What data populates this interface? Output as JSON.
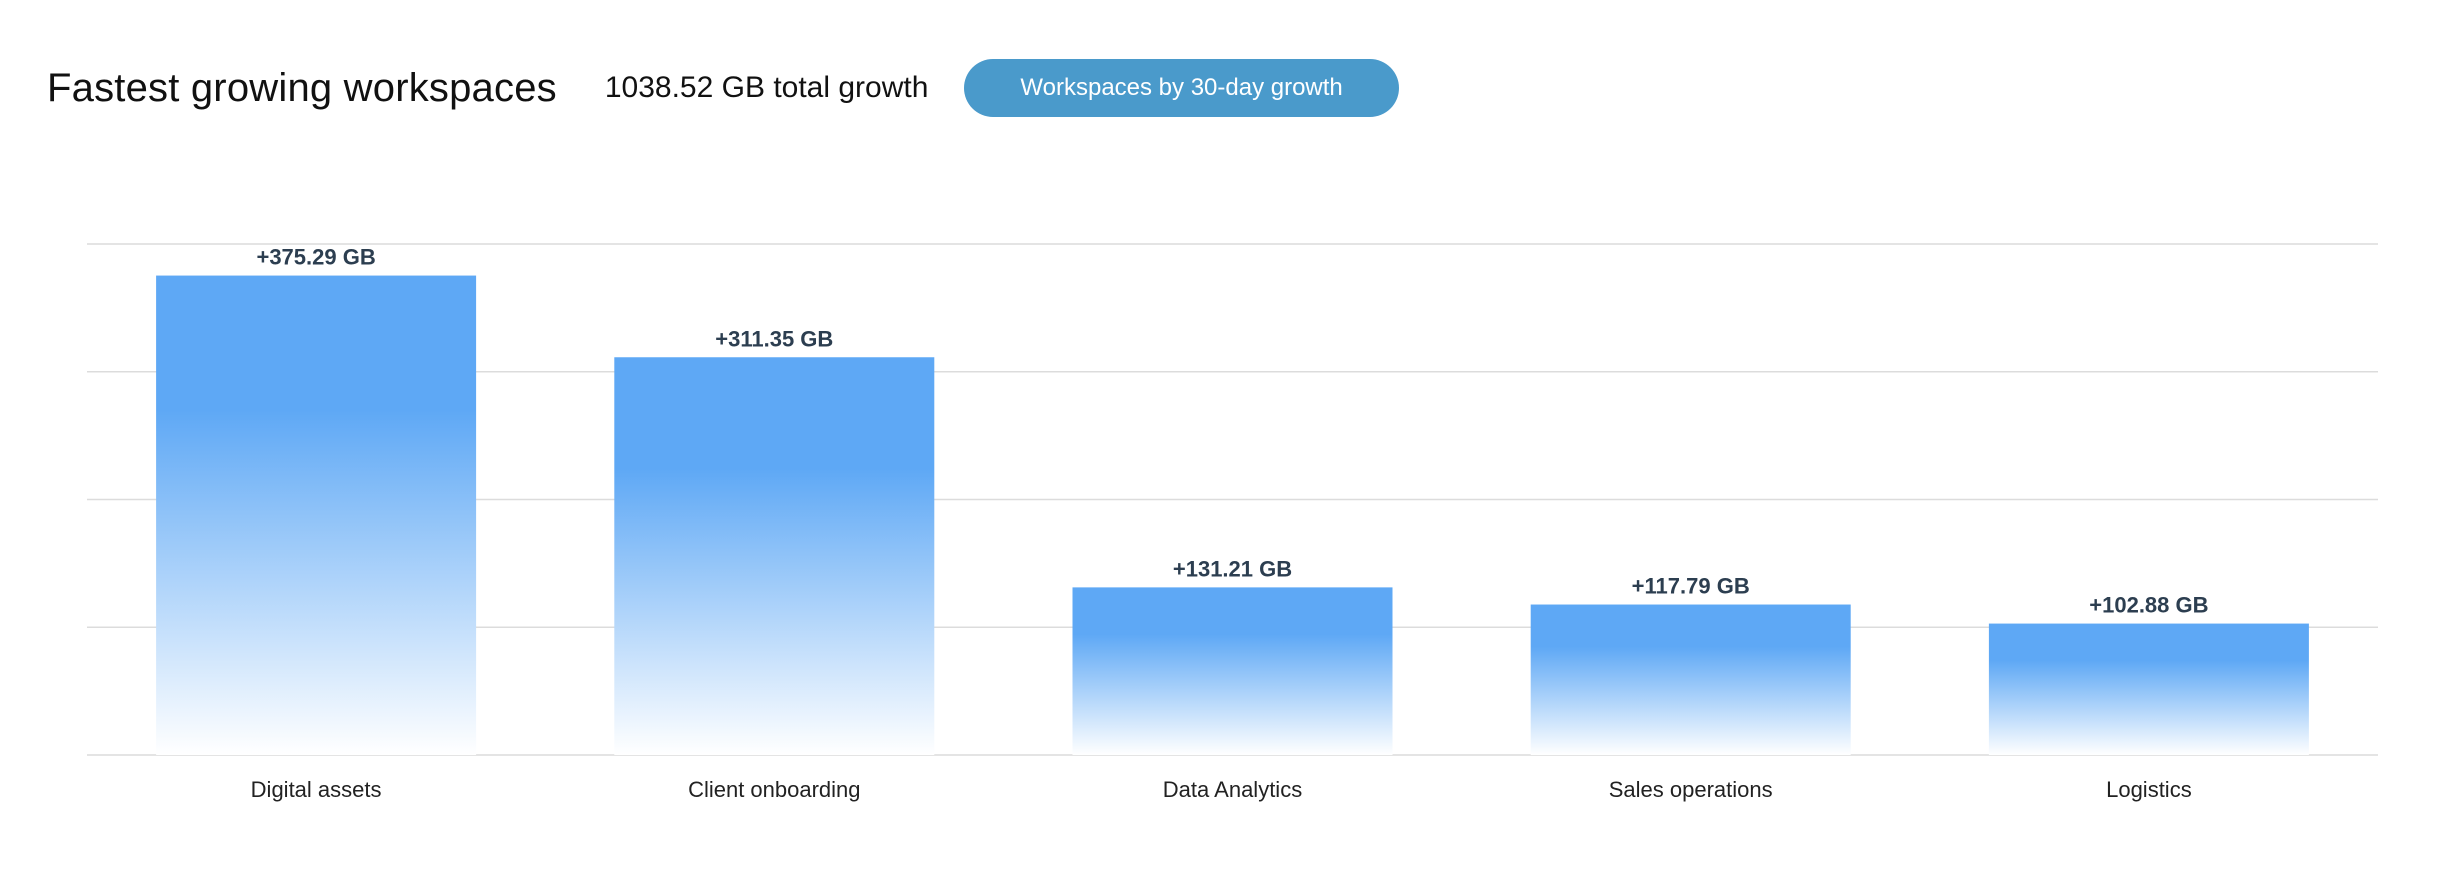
{
  "header": {
    "title": "Fastest growing workspaces",
    "total": "1038.52 GB total growth",
    "filter_button": "Workspaces by 30-day growth"
  },
  "colors": {
    "bar": "#5ea8f5",
    "button": "#4a9acb",
    "grid": "#dcdcdc"
  },
  "chart_data": {
    "type": "bar",
    "categories": [
      "Digital assets",
      "Client onboarding",
      "Data Analytics",
      "Sales operations",
      "Logistics"
    ],
    "values": [
      375.29,
      311.35,
      131.21,
      117.79,
      102.88
    ],
    "data_labels": [
      "+375.29 GB",
      "+311.35 GB",
      "+131.21 GB",
      "+117.79 GB",
      "+102.88 GB"
    ],
    "title": "Fastest growing workspaces",
    "xlabel": "",
    "ylabel": "",
    "ylim": [
      0,
      400
    ],
    "gridlines": [
      0,
      100,
      200,
      300,
      400
    ],
    "grid": true
  }
}
